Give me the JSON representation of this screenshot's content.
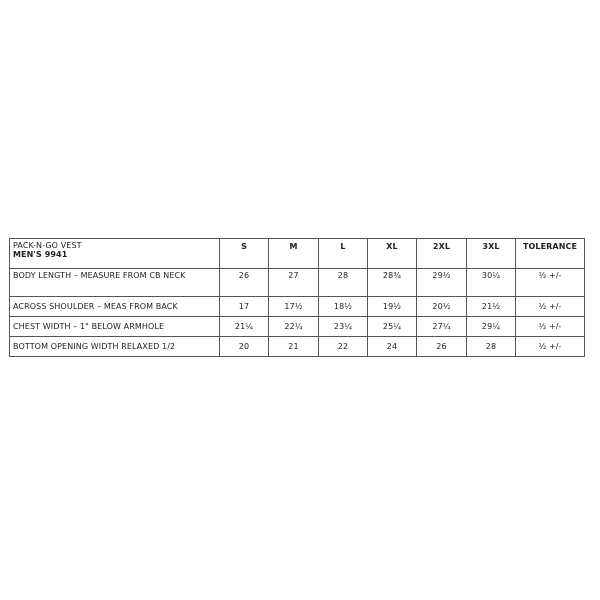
{
  "product": {
    "name": "PACK-N-GO VEST",
    "style": "MEN'S 9941"
  },
  "sizes": [
    "S",
    "M",
    "L",
    "XL",
    "2XL",
    "3XL",
    "TOLERANCE"
  ],
  "rows": [
    {
      "label": "BODY LENGTH – MEASURE FROM CB NECK",
      "values": [
        "26",
        "27",
        "28",
        "28¾",
        "29½",
        "30¼",
        "½ +/-"
      ]
    },
    {
      "label": "ACROSS SHOULDER – MEAS FROM BACK",
      "values": [
        "17",
        "17½",
        "18½",
        "19½",
        "20½",
        "21½",
        "½ +/-"
      ]
    },
    {
      "label": "CHEST WIDTH – 1\" BELOW ARMHOLE",
      "values": [
        "21¼",
        "22¼",
        "23¼",
        "25¼",
        "27¼",
        "29¼",
        "½ +/-"
      ]
    },
    {
      "label": "BOTTOM OPENING WIDTH RELAXED 1/2",
      "values": [
        "20",
        "21",
        "22",
        "24",
        "26",
        "28",
        "½ +/-"
      ]
    }
  ]
}
